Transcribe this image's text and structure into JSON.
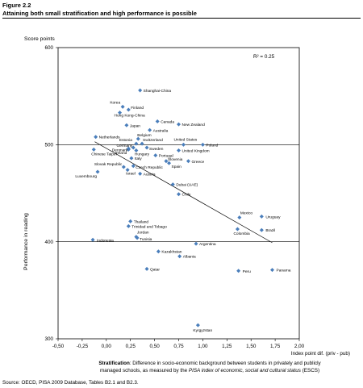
{
  "figure": {
    "label": "Figure 2.2",
    "title": "Attaining both small stratification and high performance is possible"
  },
  "caption": {
    "bold": "Stratification",
    "text1": ": Difference in socio-economic background between students in privately and publicly managed schools, as measured by the ",
    "italic": "PISA index of economic, social and cultural status",
    "text2": " (ESCS)"
  },
  "source": "Source: OECD, PISA 2009 Database, Tables B2.1 and B2.3.",
  "chart_data": {
    "type": "scatter",
    "title": "",
    "xlabel": "Index point dif. (priv - pub)",
    "ylabel": "Performance in reading",
    "y_axis_title": "Score points",
    "xlim": [
      -0.5,
      2.0
    ],
    "ylim": [
      300,
      600
    ],
    "xticks": [
      -0.5,
      -0.25,
      0.0,
      0.25,
      0.5,
      0.75,
      1.0,
      1.25,
      1.5,
      1.75,
      2.0
    ],
    "xtick_labels": [
      "-0,50",
      "-0,25",
      "0,00",
      "0,25",
      "0,50",
      "0,75",
      "1,00",
      "1,25",
      "1,50",
      "1,75",
      "2,00"
    ],
    "yticks": [
      300,
      400,
      500,
      600
    ],
    "ytick_labels": [
      "300",
      "400",
      "500",
      "600"
    ],
    "reference_lines_y": [
      400,
      500
    ],
    "r_squared_label": "R² = 0.25",
    "marker_color": "#4a7ebb",
    "trend_line": {
      "x": [
        -0.12,
        1.72
      ],
      "y": [
        503,
        399
      ]
    },
    "points": [
      {
        "label": "Shanghai-China",
        "x": 0.35,
        "y": 556
      },
      {
        "label": "Korea",
        "x": 0.17,
        "y": 539
      },
      {
        "label": "Finland",
        "x": 0.23,
        "y": 536
      },
      {
        "label": "Hong Kong-China",
        "x": 0.14,
        "y": 533
      },
      {
        "label": "Canada",
        "x": 0.53,
        "y": 524
      },
      {
        "label": "New Zealand",
        "x": 0.75,
        "y": 521
      },
      {
        "label": "Japan",
        "x": 0.21,
        "y": 520
      },
      {
        "label": "Australia",
        "x": 0.45,
        "y": 515
      },
      {
        "label": "Netherlands",
        "x": -0.11,
        "y": 508
      },
      {
        "label": "Belgium",
        "x": 0.33,
        "y": 506
      },
      {
        "label": "United States",
        "x": 0.8,
        "y": 500
      },
      {
        "label": "Poland",
        "x": 1.0,
        "y": 500
      },
      {
        "label": "Estonia",
        "x": 0.31,
        "y": 501
      },
      {
        "label": "Switzerland",
        "x": 0.37,
        "y": 501
      },
      {
        "label": "Germany",
        "x": 0.28,
        "y": 497
      },
      {
        "label": "Denmark",
        "x": 0.23,
        "y": 495
      },
      {
        "label": "Sweden",
        "x": 0.42,
        "y": 497
      },
      {
        "label": "Chinese Taipei",
        "x": -0.13,
        "y": 495
      },
      {
        "label": "Ireland",
        "x": 0.23,
        "y": 496
      },
      {
        "label": "Hungary",
        "x": 0.31,
        "y": 494
      },
      {
        "label": "United Kingdom",
        "x": 0.75,
        "y": 494
      },
      {
        "label": "Portugal",
        "x": 0.51,
        "y": 489
      },
      {
        "label": "Italy",
        "x": 0.26,
        "y": 486
      },
      {
        "label": "Slovenia",
        "x": 0.62,
        "y": 483
      },
      {
        "label": "Greece",
        "x": 0.85,
        "y": 483
      },
      {
        "label": "Spain",
        "x": 0.65,
        "y": 481
      },
      {
        "label": "Slovak Republic",
        "x": 0.18,
        "y": 477
      },
      {
        "label": "Czech Republic",
        "x": 0.28,
        "y": 478
      },
      {
        "label": "Israel",
        "x": 0.22,
        "y": 474
      },
      {
        "label": "Luxembourg",
        "x": -0.09,
        "y": 472
      },
      {
        "label": "Austria",
        "x": 0.35,
        "y": 470
      },
      {
        "label": "Dubai (UAE)",
        "x": 0.69,
        "y": 459
      },
      {
        "label": "Chile",
        "x": 0.75,
        "y": 449
      },
      {
        "label": "Mexico",
        "x": 1.38,
        "y": 425
      },
      {
        "label": "Uruguay",
        "x": 1.61,
        "y": 426
      },
      {
        "label": "Thailand",
        "x": 0.25,
        "y": 421
      },
      {
        "label": "Trinidad and Tobago",
        "x": 0.23,
        "y": 416
      },
      {
        "label": "Colombia",
        "x": 1.36,
        "y": 413
      },
      {
        "label": "Brazil",
        "x": 1.61,
        "y": 412
      },
      {
        "label": "Jordan",
        "x": 0.31,
        "y": 405
      },
      {
        "label": "Tunisia",
        "x": 0.32,
        "y": 404
      },
      {
        "label": "Indonesia",
        "x": -0.14,
        "y": 402
      },
      {
        "label": "Argentina",
        "x": 0.93,
        "y": 398
      },
      {
        "label": "Kazakhstan",
        "x": 0.54,
        "y": 390
      },
      {
        "label": "Albania",
        "x": 0.76,
        "y": 385
      },
      {
        "label": "Qatar",
        "x": 0.42,
        "y": 372
      },
      {
        "label": "Peru",
        "x": 1.37,
        "y": 370
      },
      {
        "label": "Panama",
        "x": 1.72,
        "y": 371
      },
      {
        "label": "Kyrgyzstan",
        "x": 0.95,
        "y": 314
      }
    ]
  }
}
